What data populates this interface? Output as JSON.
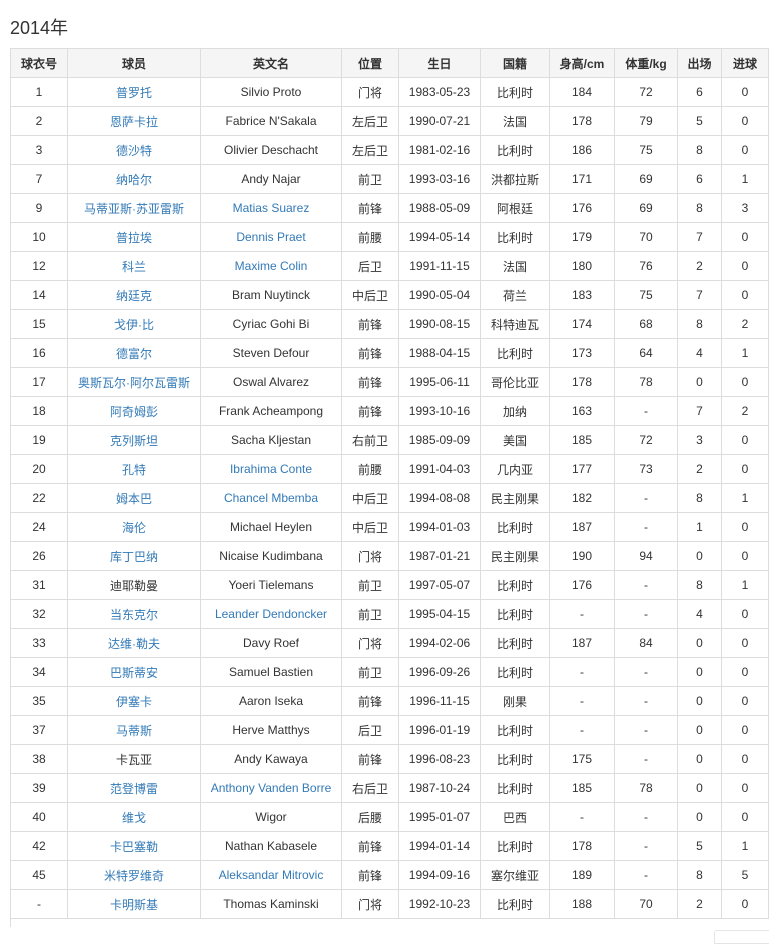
{
  "title": "2014年",
  "colors": {
    "link": "#337ab7",
    "text": "#333333",
    "header_bg": "#f5f5f5",
    "border": "#dddddd"
  },
  "columns": [
    "球衣号",
    "球员",
    "英文名",
    "位置",
    "生日",
    "国籍",
    "身高/cm",
    "体重/kg",
    "出场",
    "进球"
  ],
  "rows": [
    {
      "no": "1",
      "cn": "普罗托",
      "cn_link": true,
      "en": "Silvio Proto",
      "en_link": false,
      "pos": "门将",
      "birth": "1983-05-23",
      "nat": "比利时",
      "h": "184",
      "w": "72",
      "apps": "6",
      "goals": "0"
    },
    {
      "no": "2",
      "cn": "恩萨卡拉",
      "cn_link": true,
      "en": "Fabrice N'Sakala",
      "en_link": false,
      "pos": "左后卫",
      "birth": "1990-07-21",
      "nat": "法国",
      "h": "178",
      "w": "79",
      "apps": "5",
      "goals": "0"
    },
    {
      "no": "3",
      "cn": "德沙特",
      "cn_link": true,
      "en": "Olivier Deschacht",
      "en_link": false,
      "pos": "左后卫",
      "birth": "1981-02-16",
      "nat": "比利时",
      "h": "186",
      "w": "75",
      "apps": "8",
      "goals": "0"
    },
    {
      "no": "7",
      "cn": "纳哈尔",
      "cn_link": true,
      "en": "Andy Najar",
      "en_link": false,
      "pos": "前卫",
      "birth": "1993-03-16",
      "nat": "洪都拉斯",
      "h": "171",
      "w": "69",
      "apps": "6",
      "goals": "1"
    },
    {
      "no": "9",
      "cn": "马蒂亚斯·苏亚雷斯",
      "cn_link": true,
      "en": "Matias Suarez",
      "en_link": true,
      "pos": "前锋",
      "birth": "1988-05-09",
      "nat": "阿根廷",
      "h": "176",
      "w": "69",
      "apps": "8",
      "goals": "3"
    },
    {
      "no": "10",
      "cn": "普拉埃",
      "cn_link": true,
      "en": "Dennis Praet",
      "en_link": true,
      "pos": "前腰",
      "birth": "1994-05-14",
      "nat": "比利时",
      "h": "179",
      "w": "70",
      "apps": "7",
      "goals": "0"
    },
    {
      "no": "12",
      "cn": "科兰",
      "cn_link": true,
      "en": "Maxime Colin",
      "en_link": true,
      "pos": "后卫",
      "birth": "1991-11-15",
      "nat": "法国",
      "h": "180",
      "w": "76",
      "apps": "2",
      "goals": "0"
    },
    {
      "no": "14",
      "cn": "纳廷克",
      "cn_link": true,
      "en": "Bram Nuytinck",
      "en_link": false,
      "pos": "中后卫",
      "birth": "1990-05-04",
      "nat": "荷兰",
      "h": "183",
      "w": "75",
      "apps": "7",
      "goals": "0"
    },
    {
      "no": "15",
      "cn": "戈伊·比",
      "cn_link": true,
      "en": "Cyriac Gohi Bi",
      "en_link": false,
      "pos": "前锋",
      "birth": "1990-08-15",
      "nat": "科特迪瓦",
      "h": "174",
      "w": "68",
      "apps": "8",
      "goals": "2"
    },
    {
      "no": "16",
      "cn": "德富尔",
      "cn_link": true,
      "en": "Steven Defour",
      "en_link": false,
      "pos": "前锋",
      "birth": "1988-04-15",
      "nat": "比利时",
      "h": "173",
      "w": "64",
      "apps": "4",
      "goals": "1"
    },
    {
      "no": "17",
      "cn": "奥斯瓦尔·阿尔瓦雷斯",
      "cn_link": true,
      "en": "Oswal Alvarez",
      "en_link": false,
      "pos": "前锋",
      "birth": "1995-06-11",
      "nat": "哥伦比亚",
      "h": "178",
      "w": "78",
      "apps": "0",
      "goals": "0"
    },
    {
      "no": "18",
      "cn": "阿奇姆彭",
      "cn_link": true,
      "en": "Frank Acheampong",
      "en_link": false,
      "pos": "前锋",
      "birth": "1993-10-16",
      "nat": "加纳",
      "h": "163",
      "w": "-",
      "apps": "7",
      "goals": "2"
    },
    {
      "no": "19",
      "cn": "克列斯坦",
      "cn_link": true,
      "en": "Sacha Kljestan",
      "en_link": false,
      "pos": "右前卫",
      "birth": "1985-09-09",
      "nat": "美国",
      "h": "185",
      "w": "72",
      "apps": "3",
      "goals": "0"
    },
    {
      "no": "20",
      "cn": "孔特",
      "cn_link": true,
      "en": "Ibrahima Conte",
      "en_link": true,
      "pos": "前腰",
      "birth": "1991-04-03",
      "nat": "几内亚",
      "h": "177",
      "w": "73",
      "apps": "2",
      "goals": "0"
    },
    {
      "no": "22",
      "cn": "姆本巴",
      "cn_link": true,
      "en": "Chancel Mbemba",
      "en_link": true,
      "pos": "中后卫",
      "birth": "1994-08-08",
      "nat": "民主刚果",
      "h": "182",
      "w": "-",
      "apps": "8",
      "goals": "1"
    },
    {
      "no": "24",
      "cn": "海伦",
      "cn_link": true,
      "en": "Michael Heylen",
      "en_link": false,
      "pos": "中后卫",
      "birth": "1994-01-03",
      "nat": "比利时",
      "h": "187",
      "w": "-",
      "apps": "1",
      "goals": "0"
    },
    {
      "no": "26",
      "cn": "库丁巴纳",
      "cn_link": true,
      "en": "Nicaise Kudimbana",
      "en_link": false,
      "pos": "门将",
      "birth": "1987-01-21",
      "nat": "民主刚果",
      "h": "190",
      "w": "94",
      "apps": "0",
      "goals": "0"
    },
    {
      "no": "31",
      "cn": "迪耶勒曼",
      "cn_link": false,
      "en": "Yoeri Tielemans",
      "en_link": false,
      "pos": "前卫",
      "birth": "1997-05-07",
      "nat": "比利时",
      "h": "176",
      "w": "-",
      "apps": "8",
      "goals": "1"
    },
    {
      "no": "32",
      "cn": "当东克尔",
      "cn_link": true,
      "en": "Leander Dendoncker",
      "en_link": true,
      "pos": "前卫",
      "birth": "1995-04-15",
      "nat": "比利时",
      "h": "-",
      "w": "-",
      "apps": "4",
      "goals": "0"
    },
    {
      "no": "33",
      "cn": "达维·勒夫",
      "cn_link": true,
      "en": "Davy Roef",
      "en_link": false,
      "pos": "门将",
      "birth": "1994-02-06",
      "nat": "比利时",
      "h": "187",
      "w": "84",
      "apps": "0",
      "goals": "0"
    },
    {
      "no": "34",
      "cn": "巴斯蒂安",
      "cn_link": true,
      "en": "Samuel Bastien",
      "en_link": false,
      "pos": "前卫",
      "birth": "1996-09-26",
      "nat": "比利时",
      "h": "-",
      "w": "-",
      "apps": "0",
      "goals": "0"
    },
    {
      "no": "35",
      "cn": "伊塞卡",
      "cn_link": true,
      "en": "Aaron Iseka",
      "en_link": false,
      "pos": "前锋",
      "birth": "1996-11-15",
      "nat": "刚果",
      "h": "-",
      "w": "-",
      "apps": "0",
      "goals": "0"
    },
    {
      "no": "37",
      "cn": "马蒂斯",
      "cn_link": true,
      "en": "Herve Matthys",
      "en_link": false,
      "pos": "后卫",
      "birth": "1996-01-19",
      "nat": "比利时",
      "h": "-",
      "w": "-",
      "apps": "0",
      "goals": "0"
    },
    {
      "no": "38",
      "cn": "卡瓦亚",
      "cn_link": false,
      "en": "Andy Kawaya",
      "en_link": false,
      "pos": "前锋",
      "birth": "1996-08-23",
      "nat": "比利时",
      "h": "175",
      "w": "-",
      "apps": "0",
      "goals": "0"
    },
    {
      "no": "39",
      "cn": "范登博雷",
      "cn_link": true,
      "en": "Anthony Vanden Borre",
      "en_link": true,
      "pos": "右后卫",
      "birth": "1987-10-24",
      "nat": "比利时",
      "h": "185",
      "w": "78",
      "apps": "0",
      "goals": "0"
    },
    {
      "no": "40",
      "cn": "维戈",
      "cn_link": true,
      "en": "Wigor",
      "en_link": false,
      "pos": "后腰",
      "birth": "1995-01-07",
      "nat": "巴西",
      "h": "-",
      "w": "-",
      "apps": "0",
      "goals": "0"
    },
    {
      "no": "42",
      "cn": "卡巴塞勒",
      "cn_link": true,
      "en": "Nathan Kabasele",
      "en_link": false,
      "pos": "前锋",
      "birth": "1994-01-14",
      "nat": "比利时",
      "h": "178",
      "w": "-",
      "apps": "5",
      "goals": "1"
    },
    {
      "no": "45",
      "cn": "米特罗维奇",
      "cn_link": true,
      "en": "Aleksandar Mitrovic",
      "en_link": true,
      "pos": "前锋",
      "birth": "1994-09-16",
      "nat": "塞尔维亚",
      "h": "189",
      "w": "-",
      "apps": "8",
      "goals": "5"
    },
    {
      "no": "-",
      "cn": "卡明斯基",
      "cn_link": true,
      "en": "Thomas Kaminski",
      "en_link": false,
      "pos": "门将",
      "birth": "1992-10-23",
      "nat": "比利时",
      "h": "188",
      "w": "70",
      "apps": "2",
      "goals": "0"
    }
  ]
}
